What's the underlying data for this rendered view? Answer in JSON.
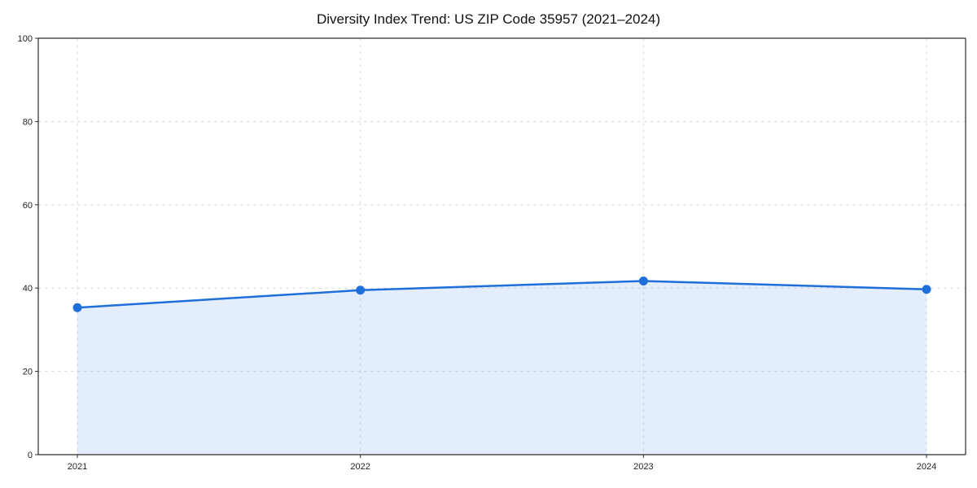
{
  "chart_data": {
    "type": "area",
    "title": "Diversity Index Trend: US ZIP Code 35957 (2021–2024)",
    "x": [
      2021,
      2022,
      2023,
      2024
    ],
    "categories": [
      "2021",
      "2022",
      "2023",
      "2024"
    ],
    "series": [
      {
        "name": "Diversity Index",
        "values": [
          35.3,
          39.5,
          41.7,
          39.7
        ]
      }
    ],
    "xlabel": "",
    "ylabel": "",
    "ylim": [
      0,
      100
    ],
    "yticks": [
      0,
      20,
      40,
      60,
      80,
      100
    ],
    "grid": true,
    "grid_style": "dashed",
    "legend": "none",
    "colors": {
      "line": "#1f6fdb",
      "marker": "#1f6fdb",
      "fill": "#1f6fdb",
      "fill_opacity": 0.12,
      "grid": "#dcdcdc",
      "spine": "#2b2b2b",
      "tick_text": "#222222",
      "background": "#ffffff"
    }
  }
}
